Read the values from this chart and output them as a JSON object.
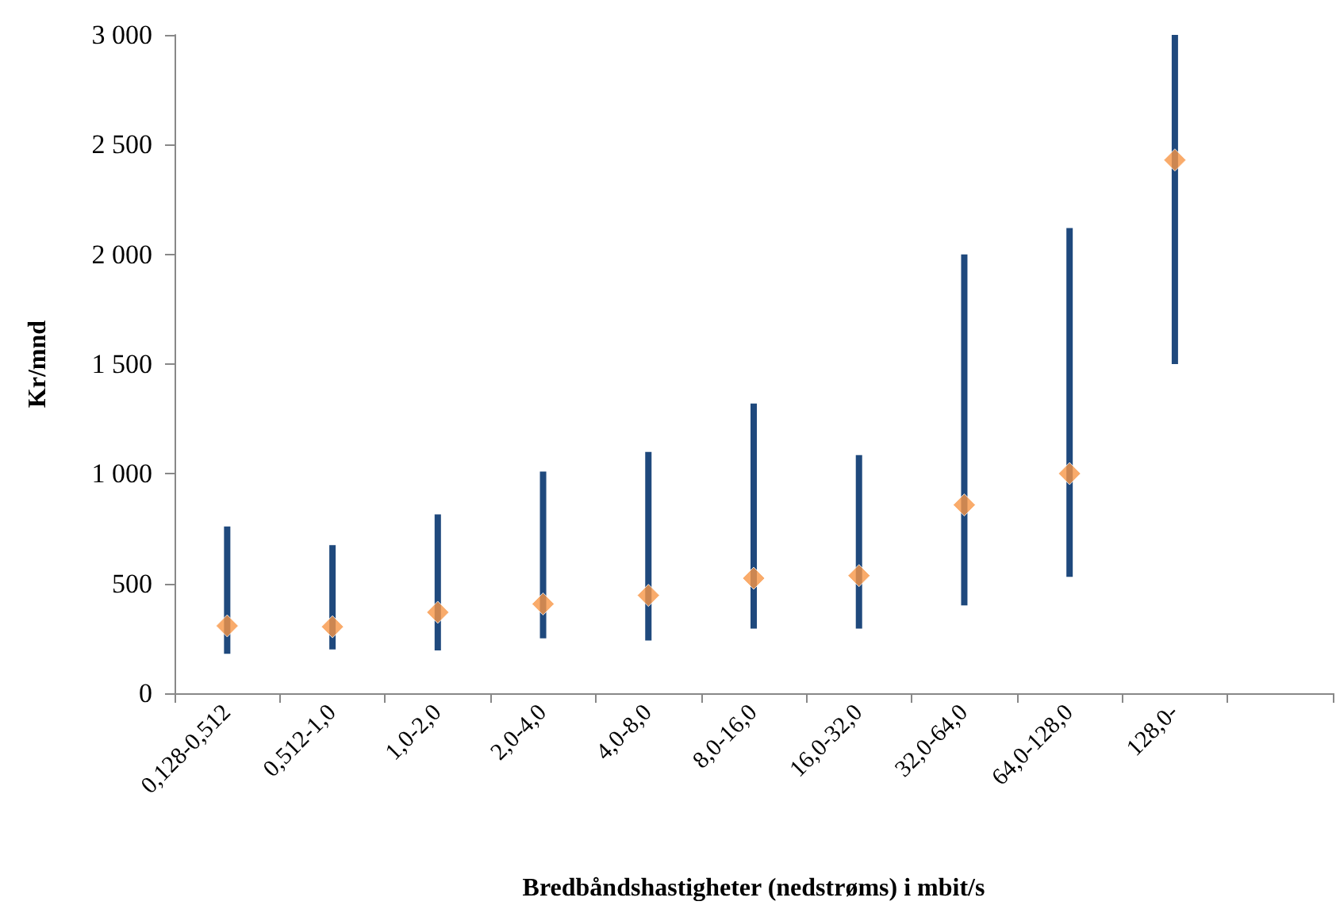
{
  "chart_data": {
    "type": "scatter",
    "xlabel": "Bredbåndshastigheter (nedstrøms) i mbit/s",
    "ylabel": "Kr/mnd",
    "categories": [
      "0,128-0,512",
      "0,512-1,0",
      "1,0-2,0",
      "2,0-4,0",
      "4,0-8,0",
      "8,0-16,0",
      "16,0-32,0",
      "32,0-64,0",
      "64,0-128,0",
      "128,0-",
      null
    ],
    "series": [
      {
        "color": "#f79646",
        "values": [
          307,
          303,
          369,
          407,
          446,
          524,
          536,
          858,
          1001,
          2430,
          null
        ],
        "errors": [
          [
            180,
            760
          ],
          [
            200,
            675
          ],
          [
            195,
            815
          ],
          [
            250,
            1010
          ],
          [
            240,
            1100
          ],
          [
            295,
            1320
          ],
          [
            295,
            1085
          ],
          [
            400,
            2000
          ],
          [
            530,
            2120
          ],
          [
            1500,
            3000
          ],
          null
        ]
      }
    ],
    "ylim": [
      0,
      3000
    ],
    "yticks": [
      0,
      500,
      {
        "value": 1000,
        "label": "1 000"
      },
      {
        "value": 1500,
        "label": "1 500"
      },
      {
        "value": 2000,
        "label": "2 000"
      },
      {
        "value": 2500,
        "label": "2 500"
      },
      {
        "value": 3000,
        "label": "3 000"
      }
    ],
    "grid": false,
    "marker": "diamond"
  }
}
